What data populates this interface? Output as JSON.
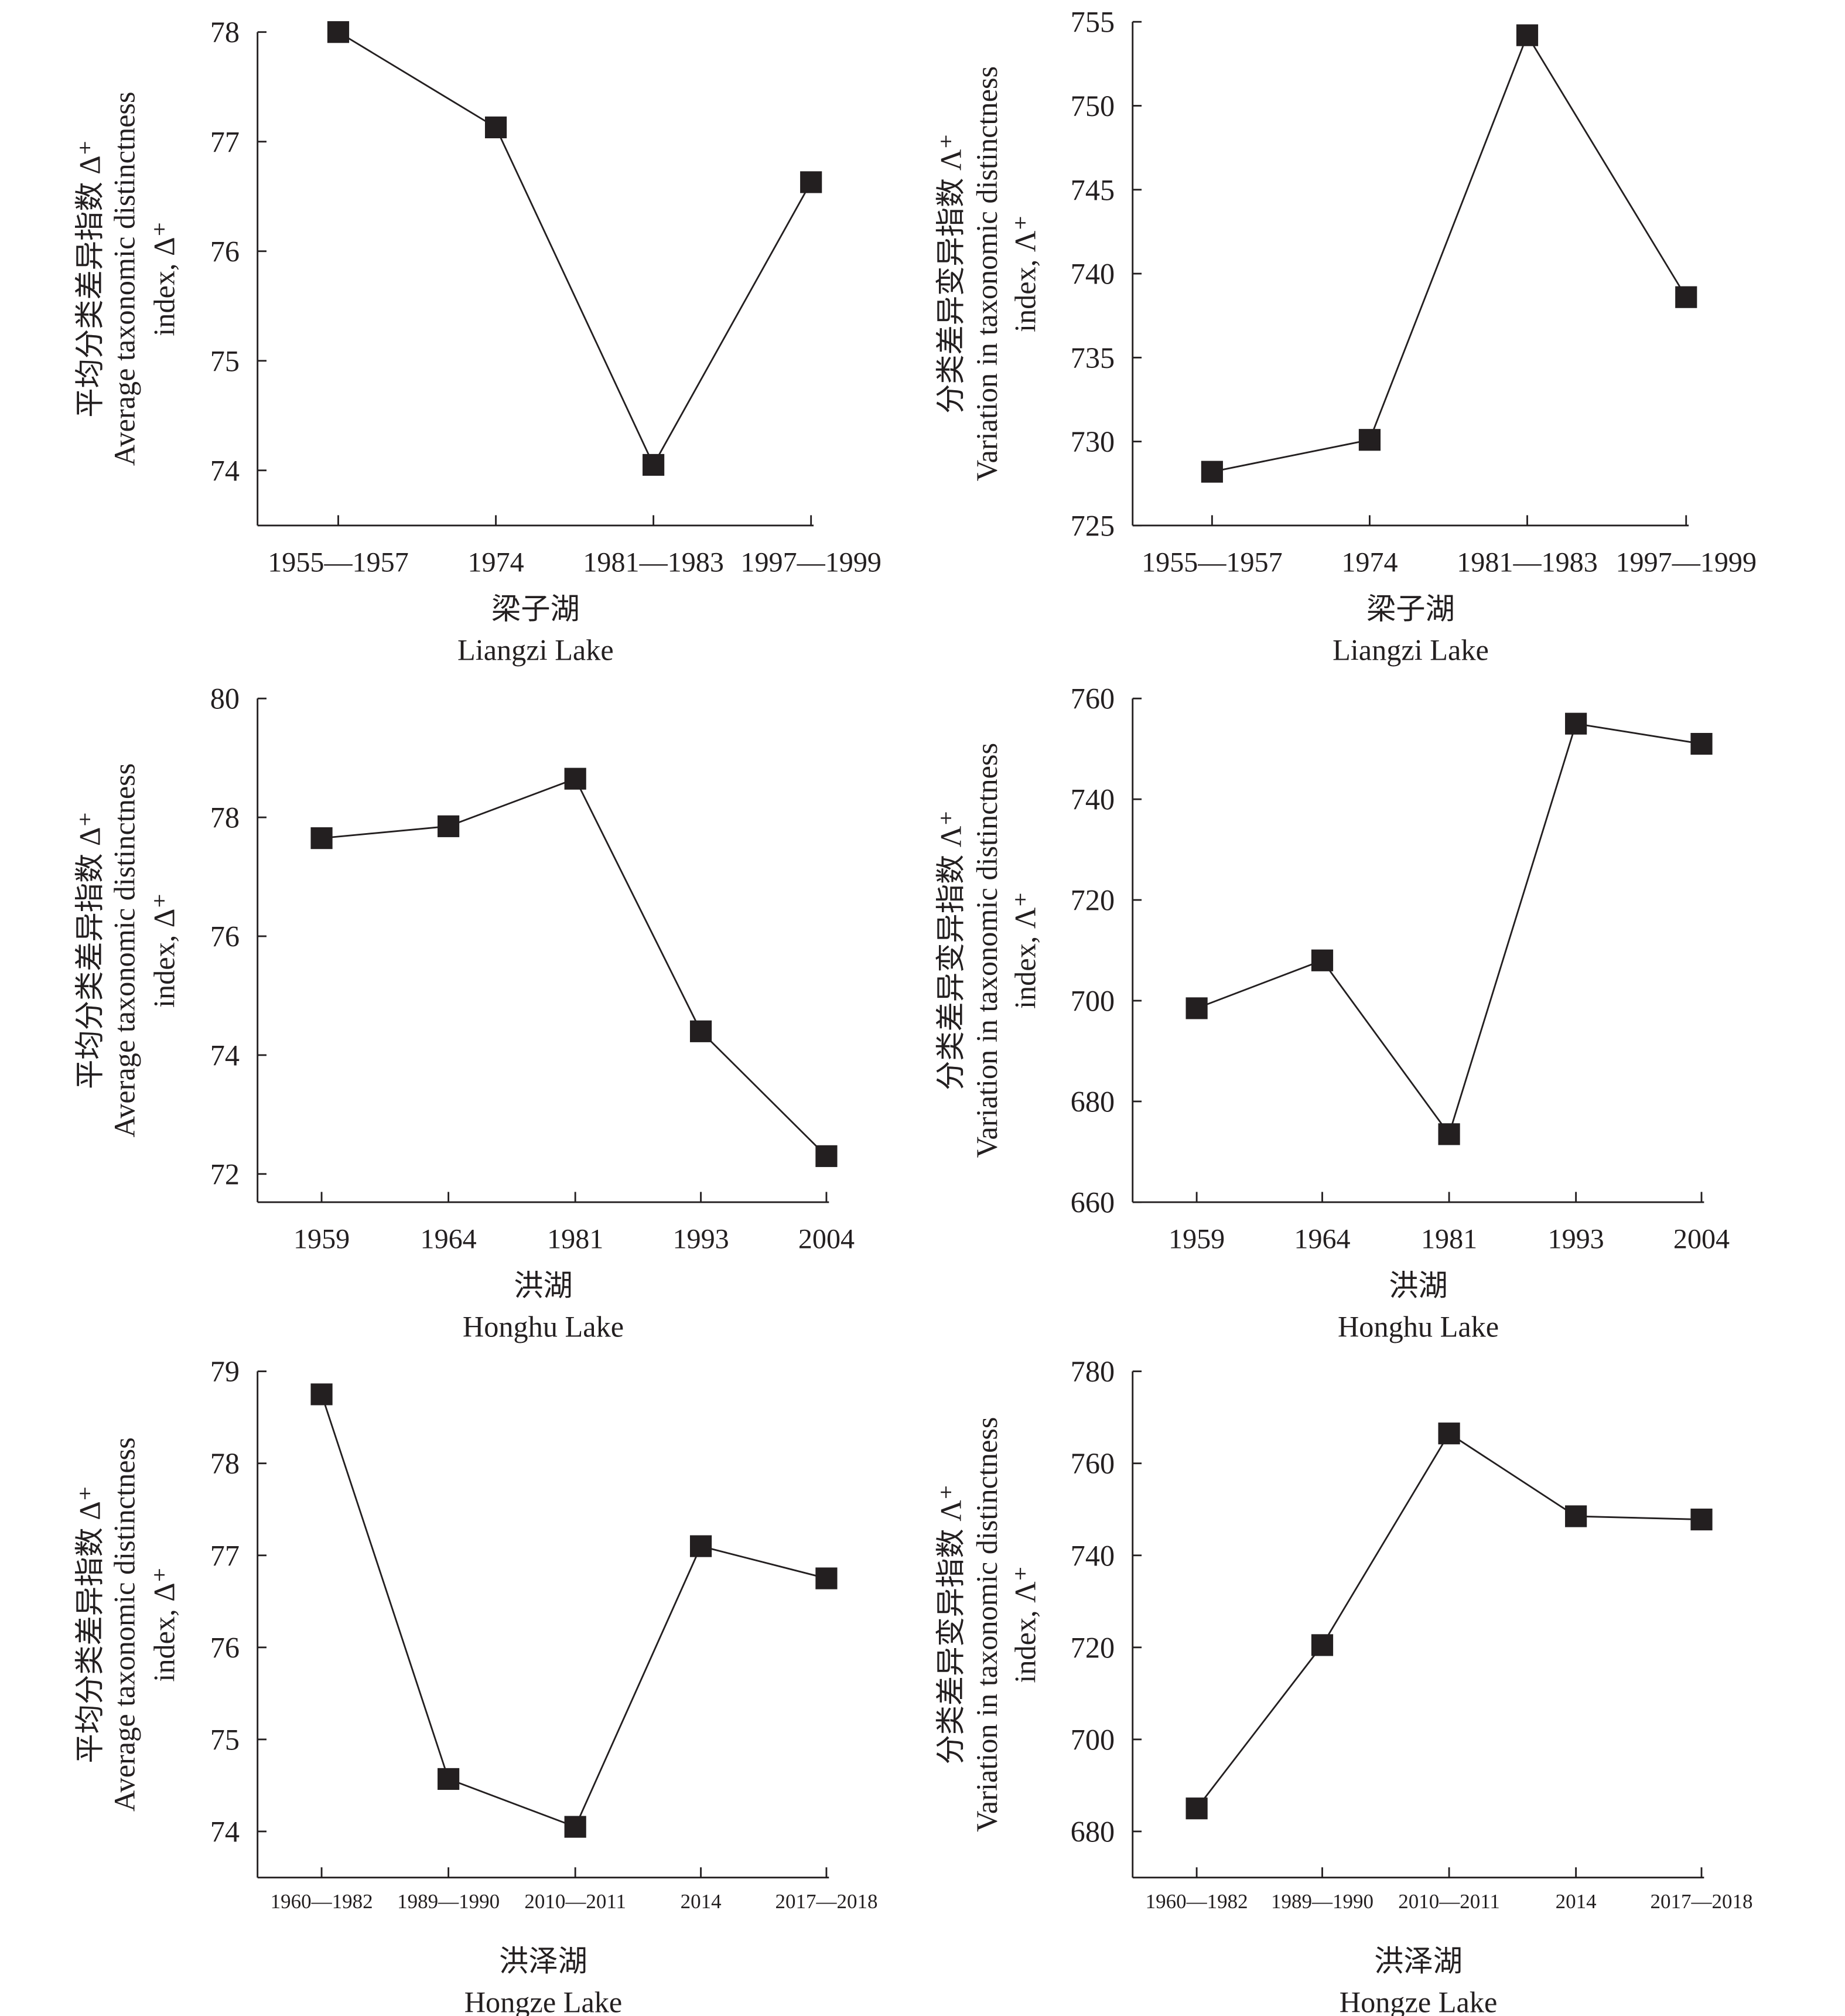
{
  "chart_data": [
    {
      "type": "line",
      "lake_cn": "梁子湖",
      "lake_en": "Liangzi Lake",
      "ylabel_cn": "平均分类差异指数 Δ⁺",
      "ylabel_en1": "Average taxonomic distinctness",
      "ylabel_en2": "index, Δ⁺",
      "categories": [
        "1955—1957",
        "1974",
        "1981—1983",
        "1997—1999"
      ],
      "values": [
        78.0,
        77.13,
        74.05,
        76.63
      ],
      "yticks": [
        74,
        75,
        76,
        77,
        78
      ],
      "ylim": [
        73.5,
        78
      ]
    },
    {
      "type": "line",
      "lake_cn": "梁子湖",
      "lake_en": "Liangzi Lake",
      "ylabel_cn": "分类差异变异指数 Λ⁺",
      "ylabel_en1": "Variation in taxonomic distinctness",
      "ylabel_en2": "index, Λ⁺",
      "categories": [
        "1955—1957",
        "1974",
        "1981—1983",
        "1997—1999"
      ],
      "values": [
        728.2,
        730.1,
        754.2,
        738.6
      ],
      "yticks": [
        725,
        730,
        735,
        740,
        745,
        750,
        755
      ],
      "ylim": [
        725,
        755
      ]
    },
    {
      "type": "line",
      "lake_cn": "洪湖",
      "lake_en": "Honghu Lake",
      "ylabel_cn": "平均分类差异指数 Δ⁺",
      "ylabel_en1": "Average taxonomic distinctness",
      "ylabel_en2": "index, Δ⁺",
      "categories": [
        "1959",
        "1964",
        "1981",
        "1993",
        "2004"
      ],
      "values": [
        77.65,
        77.85,
        78.65,
        74.4,
        72.3
      ],
      "yticks": [
        72,
        74,
        76,
        78,
        80
      ],
      "ylim": [
        71.5,
        80
      ]
    },
    {
      "type": "line",
      "lake_cn": "洪湖",
      "lake_en": "Honghu Lake",
      "ylabel_cn": "分类差异变异指数 Λ⁺",
      "ylabel_en1": "Variation in taxonomic distinctness",
      "ylabel_en2": "index, Λ⁺",
      "categories": [
        "1959",
        "1964",
        "1981",
        "1993",
        "2004"
      ],
      "values": [
        698.5,
        708,
        673.5,
        755,
        751
      ],
      "yticks": [
        660,
        680,
        700,
        720,
        740,
        760
      ],
      "ylim": [
        660,
        760
      ]
    },
    {
      "type": "line",
      "lake_cn": "洪泽湖",
      "lake_en": "Hongze Lake",
      "ylabel_cn": "平均分类差异指数 Δ⁺",
      "ylabel_en1": "Average taxonomic distinctness",
      "ylabel_en2": "index, Δ⁺",
      "categories": [
        "1960—1982",
        "1989—1990",
        "2010—2011",
        "2014",
        "2017—2018"
      ],
      "values": [
        78.75,
        74.57,
        74.05,
        77.1,
        76.75
      ],
      "yticks": [
        74,
        75,
        76,
        77,
        78,
        79
      ],
      "ylim": [
        73.5,
        79
      ]
    },
    {
      "type": "line",
      "lake_cn": "洪泽湖",
      "lake_en": "Hongze Lake",
      "ylabel_cn": "分类差异变异指数 Λ⁺",
      "ylabel_en1": "Variation in taxonomic distinctness",
      "ylabel_en2": "index, Λ⁺",
      "categories": [
        "1960—1982",
        "1989—1990",
        "2010—2011",
        "2014",
        "2017—2018"
      ],
      "values": [
        685,
        720.5,
        766.5,
        748.5,
        747.8
      ],
      "yticks": [
        680,
        700,
        720,
        740,
        760,
        780
      ],
      "ylim": [
        670,
        780
      ]
    }
  ]
}
